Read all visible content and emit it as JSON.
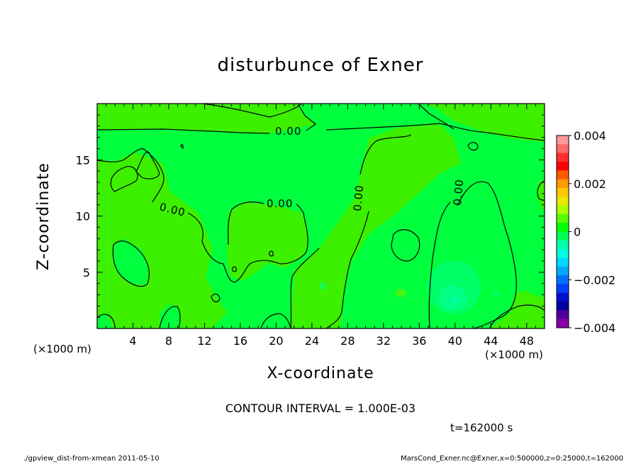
{
  "chart_data": {
    "type": "heatmap",
    "title": "disturbunce of Exner",
    "xlabel": "X-coordinate",
    "ylabel": "Z-coordinate",
    "x_unit": "(×1000 m)",
    "y_unit": "(×1000 m)",
    "xlim": [
      0,
      50
    ],
    "ylim": [
      0,
      20
    ],
    "x_ticks": [
      "4",
      "8",
      "12",
      "16",
      "20",
      "24",
      "28",
      "32",
      "36",
      "40",
      "44",
      "48"
    ],
    "y_ticks": [
      "5",
      "10",
      "15"
    ],
    "colorbar": {
      "range": [
        -0.004,
        0.004
      ],
      "labels": [
        "0.004",
        "0.002",
        "0",
        "−0.002",
        "−0.004"
      ],
      "colors": [
        "#ff9a9a",
        "#ff6a6a",
        "#ff3030",
        "#ff0000",
        "#ff5a00",
        "#ff9a00",
        "#ffc800",
        "#e8e800",
        "#aaff00",
        "#55ff00",
        "#00ff00",
        "#00ff55",
        "#00ffaa",
        "#00ffe0",
        "#00d8ff",
        "#00a8ff",
        "#0070ff",
        "#0040ff",
        "#0010d0",
        "#0000a0",
        "#5000a0",
        "#8a00a8"
      ]
    },
    "field_regions": [
      {
        "level": "slightly positive (0 to 0.0004)",
        "color": "#3cf000"
      },
      {
        "level": "slightly negative (-0.0004 to 0)",
        "color": "#00ff3c"
      },
      {
        "level": "negative core near x=40, z=3",
        "color": "#00ff88"
      }
    ],
    "contour_labels": [
      "0.00",
      "0.00",
      "0.00",
      "0.00",
      "0.00",
      "0.00"
    ],
    "contour_interval": "CONTOUR INTERVAL = 1.000E-03",
    "time": "t=162000 s"
  },
  "footer": {
    "left": "./gpview_dist-from-xmean  2011-05-10",
    "right": "MarsCond_Exner.nc@Exner,x=0:500000,z=0:25000,t=162000"
  }
}
